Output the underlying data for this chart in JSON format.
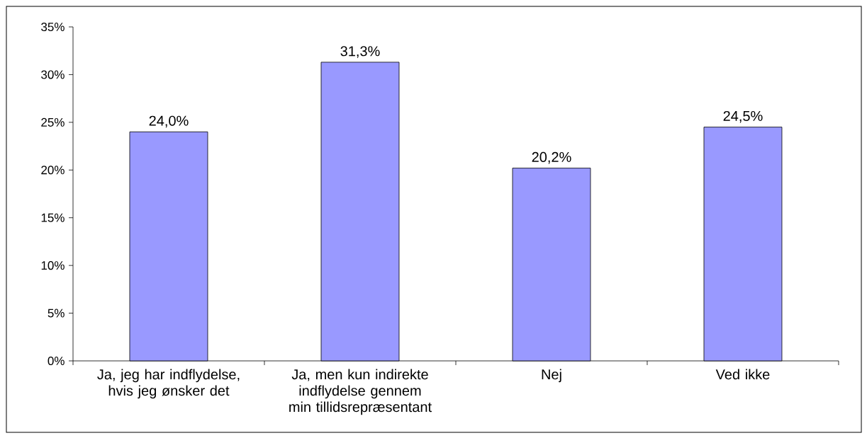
{
  "chart_data": {
    "type": "bar",
    "categories": [
      "Ja, jeg har indflydelse, hvis jeg ønsker det",
      "Ja, men kun indirekte indflydelse gennem min tillidsrepræsentant",
      "Nej",
      "Ved ikke"
    ],
    "values": [
      24.0,
      31.3,
      20.2,
      24.5
    ],
    "value_labels": [
      "24,0%",
      "31,3%",
      "20,2%",
      "24,5%"
    ],
    "color": "#9999ff",
    "ylim": [
      0,
      35
    ],
    "yticks": [
      {
        "value": 0,
        "label": "0%"
      },
      {
        "value": 5,
        "label": "5%"
      },
      {
        "value": 10,
        "label": "10%"
      },
      {
        "value": 15,
        "label": "15%"
      },
      {
        "value": 20,
        "label": "20%"
      },
      {
        "value": 25,
        "label": "25%"
      },
      {
        "value": 30,
        "label": "30%"
      },
      {
        "value": 35,
        "label": "35%"
      }
    ],
    "grid": false
  }
}
